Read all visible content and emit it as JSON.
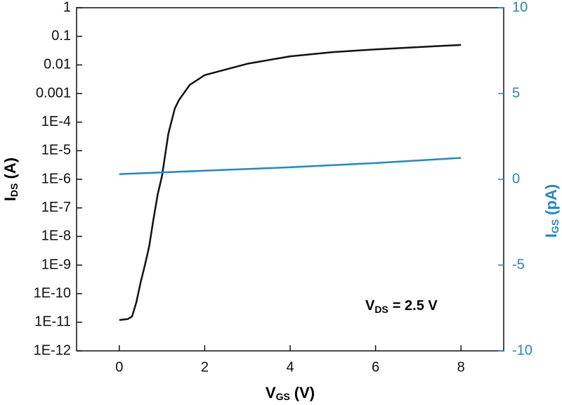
{
  "chart_data": {
    "type": "line",
    "xlabel": {
      "text": "V",
      "subscript": "GS",
      "unit": "(V)"
    },
    "ylabel": {
      "text": "I",
      "subscript": "DS",
      "unit": "(A)"
    },
    "y2label": {
      "text": "I",
      "subscript": "GS",
      "unit": "(pA)"
    },
    "annotation": {
      "text": "V",
      "subscript": "DS",
      "value": "= 2.5 V"
    },
    "xlim": [
      -1,
      9
    ],
    "xticks": [
      0,
      2,
      4,
      6,
      8
    ],
    "ylim": [
      1e-12,
      1
    ],
    "yscale": "log",
    "yticks": [
      1,
      0.1,
      0.01,
      0.001,
      {
        "value": 0.0001,
        "label": "1E-4"
      },
      {
        "value": 1e-05,
        "label": "1E-5"
      },
      {
        "value": 1e-06,
        "label": "1E-6"
      },
      {
        "value": 1e-07,
        "label": "1E-7"
      },
      {
        "value": 1e-08,
        "label": "1E-8"
      },
      {
        "value": 1e-09,
        "label": "1E-9"
      },
      {
        "value": 1e-10,
        "label": "1E-10"
      },
      {
        "value": 1e-11,
        "label": "1E-11"
      },
      {
        "value": 1e-12,
        "label": "1E-12"
      }
    ],
    "y2lim": [
      -10,
      10
    ],
    "y2ticks": [
      10,
      5,
      0,
      -5,
      -10
    ],
    "y2color": "#1f8ac7",
    "series": [
      {
        "color": "#111111",
        "x": [
          0,
          0.2,
          0.3,
          0.4,
          0.5,
          0.6,
          0.7,
          0.8,
          0.9,
          1.0,
          1.15,
          1.3,
          1.4,
          1.65,
          2,
          3,
          4,
          5,
          6,
          7,
          8
        ],
        "values": [
          1.2e-11,
          1.3e-11,
          1.6e-11,
          5e-11,
          2.5e-10,
          1e-09,
          4.5e-09,
          4e-08,
          3e-07,
          1.3e-06,
          4e-05,
          0.0003,
          0.0006,
          0.002,
          0.0044,
          0.011,
          0.02,
          0.028,
          0.035,
          0.042,
          0.05
        ]
      },
      {
        "color": "#1f8ac7",
        "axis": "y2",
        "x": [
          0,
          2,
          4,
          6,
          8
        ],
        "values": [
          0.3,
          0.5,
          0.7,
          0.95,
          1.25
        ]
      }
    ]
  }
}
